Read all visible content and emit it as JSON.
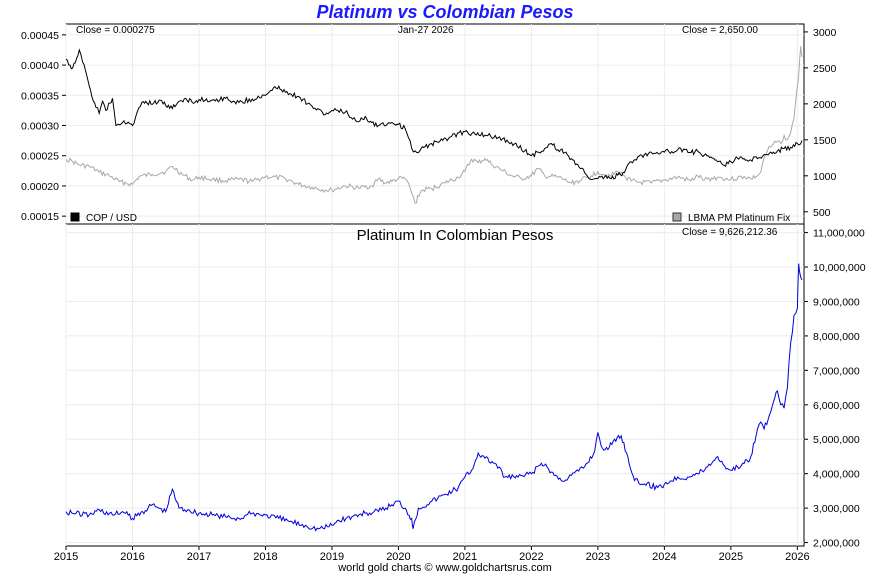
{
  "page": {
    "title": "Platinum vs Colombian Pesos",
    "credit": "world gold charts © www.goldchartsrus.com"
  },
  "top_panel": {
    "date_label": "Jan-27  2026",
    "left_close": "Close = 0.000275",
    "right_close": "Close = 2,650.00",
    "legend_left": "COP / USD",
    "legend_right": "LBMA PM Platinum Fix"
  },
  "bottom_panel": {
    "title": "Platinum In Colombian Pesos",
    "right_close": "Close = 9,626,212.36"
  },
  "colors": {
    "cop_usd": "#000000",
    "platinum_usd": "#a8a8a8",
    "platinum_cop": "#0000dd",
    "grid": "#ececec",
    "title": "#1a1aff"
  },
  "chart_data": [
    {
      "type": "line",
      "title": "Platinum vs Colombian Pesos",
      "x_ticks": [
        "2015",
        "2016",
        "2017",
        "2018",
        "2019",
        "2020",
        "2021",
        "2022",
        "2023",
        "2024",
        "2025",
        "2026"
      ],
      "xlim": [
        2015.0,
        2026.1
      ],
      "y_left_ticks": [
        "0.00015",
        "0.00020",
        "0.00025",
        "0.00030",
        "0.00035",
        "0.00040",
        "0.00045"
      ],
      "y_left_lim": [
        0.000137,
        0.000468
      ],
      "y_right_ticks": [
        "500",
        "1000",
        "1500",
        "2000",
        "2500",
        "3000"
      ],
      "y_right_lim": [
        330,
        3110
      ],
      "grid": true,
      "legend": [
        "bottom-left",
        "bottom-right"
      ],
      "series": [
        {
          "name": "COP / USD",
          "axis": "left",
          "x": [
            2015.0,
            2015.1,
            2015.2,
            2015.25,
            2015.35,
            2015.45,
            2015.5,
            2015.55,
            2015.6,
            2015.7,
            2015.75,
            2015.85,
            2016.0,
            2016.05,
            2016.1,
            2016.2,
            2016.3,
            2016.4,
            2016.5,
            2016.6,
            2016.7,
            2016.8,
            2016.9,
            2017.0,
            2017.2,
            2017.4,
            2017.6,
            2017.8,
            2018.0,
            2018.1,
            2018.2,
            2018.3,
            2018.5,
            2018.7,
            2018.9,
            2019.0,
            2019.2,
            2019.4,
            2019.5,
            2019.6,
            2019.7,
            2019.9,
            2020.0,
            2020.1,
            2020.15,
            2020.2,
            2020.25,
            2020.3,
            2020.4,
            2020.5,
            2020.6,
            2020.8,
            2021.0,
            2021.15,
            2021.3,
            2021.5,
            2021.7,
            2021.9,
            2022.0,
            2022.2,
            2022.3,
            2022.4,
            2022.5,
            2022.6,
            2022.7,
            2022.8,
            2022.85,
            2022.95,
            2023.0,
            2023.1,
            2023.2,
            2023.3,
            2023.4,
            2023.5,
            2023.6,
            2023.7,
            2023.8,
            2024.0,
            2024.2,
            2024.4,
            2024.5,
            2024.6,
            2024.7,
            2024.8,
            2024.9,
            2025.0,
            2025.1,
            2025.2,
            2025.3,
            2025.4,
            2025.5,
            2025.6,
            2025.7,
            2025.8,
            2025.9,
            2026.0,
            2026.07
          ],
          "values": [
            0.00041,
            0.000395,
            0.000425,
            0.000405,
            0.000365,
            0.00033,
            0.00032,
            0.00034,
            0.000325,
            0.000345,
            0.0003,
            0.000305,
            0.0003,
            0.000315,
            0.00033,
            0.00034,
            0.000335,
            0.000342,
            0.000333,
            0.000328,
            0.00034,
            0.000345,
            0.000338,
            0.000343,
            0.000342,
            0.000345,
            0.000338,
            0.000344,
            0.00035,
            0.000358,
            0.000365,
            0.000355,
            0.000348,
            0.000332,
            0.000318,
            0.000325,
            0.000322,
            0.000306,
            0.000315,
            0.000305,
            0.0003,
            0.000305,
            0.000302,
            0.000295,
            0.00028,
            0.000262,
            0.000258,
            0.000255,
            0.000265,
            0.00027,
            0.000272,
            0.000282,
            0.00029,
            0.000286,
            0.000284,
            0.00028,
            0.000272,
            0.000258,
            0.00025,
            0.000262,
            0.00027,
            0.00026,
            0.000255,
            0.000245,
            0.000235,
            0.000222,
            0.000215,
            0.000212,
            0.000212,
            0.000215,
            0.000212,
            0.000218,
            0.000222,
            0.00024,
            0.000248,
            0.000252,
            0.000256,
            0.000256,
            0.00026,
            0.000255,
            0.000258,
            0.000251,
            0.000248,
            0.00024,
            0.000234,
            0.00024,
            0.000246,
            0.000245,
            0.000243,
            0.000245,
            0.000252,
            0.000256,
            0.000258,
            0.000262,
            0.000264,
            0.00027,
            0.000275
          ]
        },
        {
          "name": "LBMA PM Platinum Fix",
          "axis": "right",
          "x": [
            2015.0,
            2015.1,
            2015.2,
            2015.35,
            2015.5,
            2015.65,
            2015.8,
            2016.0,
            2016.1,
            2016.3,
            2016.5,
            2016.6,
            2016.75,
            2016.9,
            2017.0,
            2017.2,
            2017.4,
            2017.6,
            2017.8,
            2018.0,
            2018.1,
            2018.3,
            2018.5,
            2018.7,
            2018.9,
            2019.0,
            2019.2,
            2019.4,
            2019.6,
            2019.7,
            2019.8,
            2019.9,
            2020.0,
            2020.1,
            2020.15,
            2020.2,
            2020.25,
            2020.35,
            2020.5,
            2020.7,
            2020.9,
            2021.0,
            2021.1,
            2021.2,
            2021.3,
            2021.4,
            2021.55,
            2021.7,
            2021.85,
            2022.0,
            2022.1,
            2022.2,
            2022.4,
            2022.6,
            2022.75,
            2022.9,
            2023.0,
            2023.1,
            2023.2,
            2023.3,
            2023.4,
            2023.5,
            2023.6,
            2023.8,
            2024.0,
            2024.2,
            2024.4,
            2024.5,
            2024.6,
            2024.8,
            2025.0,
            2025.2,
            2025.3,
            2025.4,
            2025.45,
            2025.5,
            2025.55,
            2025.6,
            2025.7,
            2025.75,
            2025.8,
            2025.85,
            2025.9,
            2025.95,
            2026.0,
            2026.02,
            2026.05,
            2026.07
          ],
          "values": [
            1230,
            1200,
            1150,
            1130,
            1050,
            1000,
            920,
            880,
            990,
            1020,
            1060,
            1130,
            1020,
            940,
            980,
            950,
            930,
            950,
            920,
            990,
            980,
            960,
            880,
            840,
            800,
            800,
            860,
            830,
            860,
            960,
            900,
            920,
            960,
            960,
            900,
            760,
            620,
            800,
            820,
            900,
            980,
            1060,
            1230,
            1180,
            1240,
            1160,
            1080,
            1000,
            960,
            1000,
            1100,
            1000,
            980,
            900,
            940,
            1000,
            1060,
            1010,
            1000,
            1060,
            1000,
            930,
            910,
            900,
            940,
            980,
            930,
            1000,
            940,
            980,
            950,
            990,
            960,
            1000,
            1050,
            1250,
            1350,
            1400,
            1480,
            1450,
            1560,
            1500,
            1600,
            1800,
            2250,
            2400,
            2800,
            2650
          ]
        },
        {
          "name": "",
          "axis": "none",
          "x": [],
          "values": []
        }
      ]
    },
    {
      "type": "line",
      "title": "Platinum In Colombian Pesos",
      "x_ticks": [
        "2015",
        "2016",
        "2017",
        "2018",
        "2019",
        "2020",
        "2021",
        "2022",
        "2023",
        "2024",
        "2025",
        "2026"
      ],
      "xlim": [
        2015.0,
        2026.1
      ],
      "y_ticks": [
        "2,000,000",
        "3,000,000",
        "4,000,000",
        "5,000,000",
        "6,000,000",
        "7,000,000",
        "8,000,000",
        "9,000,000",
        "10,000,000",
        "11,000,000"
      ],
      "ylim": [
        1900000,
        11250000
      ],
      "grid": true,
      "series": [
        {
          "name": "Platinum In Colombian Pesos",
          "axis": "left",
          "x": [
            2015.0,
            2015.15,
            2015.35,
            2015.5,
            2015.7,
            2015.85,
            2016.0,
            2016.15,
            2016.3,
            2016.5,
            2016.6,
            2016.7,
            2016.85,
            2017.0,
            2017.2,
            2017.4,
            2017.6,
            2017.8,
            2018.0,
            2018.2,
            2018.4,
            2018.6,
            2018.8,
            2019.0,
            2019.1,
            2019.3,
            2019.5,
            2019.7,
            2019.9,
            2020.0,
            2020.1,
            2020.2,
            2020.22,
            2020.3,
            2020.5,
            2020.7,
            2020.9,
            2021.0,
            2021.1,
            2021.2,
            2021.3,
            2021.45,
            2021.6,
            2021.8,
            2022.0,
            2022.15,
            2022.3,
            2022.45,
            2022.6,
            2022.8,
            2022.95,
            2023.0,
            2023.05,
            2023.15,
            2023.25,
            2023.35,
            2023.45,
            2023.55,
            2023.7,
            2023.9,
            2024.0,
            2024.2,
            2024.35,
            2024.5,
            2024.65,
            2024.8,
            2024.95,
            2025.0,
            2025.1,
            2025.2,
            2025.3,
            2025.4,
            2025.45,
            2025.5,
            2025.6,
            2025.7,
            2025.75,
            2025.8,
            2025.85,
            2025.9,
            2025.95,
            2026.0,
            2026.02,
            2026.04,
            2026.07
          ],
          "values": [
            2900000,
            2850000,
            2800000,
            2950000,
            2800000,
            2900000,
            2700000,
            2900000,
            3100000,
            2900000,
            3550000,
            3000000,
            2950000,
            2850000,
            2800000,
            2750000,
            2700000,
            2850000,
            2800000,
            2700000,
            2600000,
            2500000,
            2400000,
            2500000,
            2650000,
            2750000,
            2850000,
            2900000,
            3100000,
            3200000,
            3000000,
            2700000,
            2400000,
            3000000,
            3200000,
            3400000,
            3600000,
            3900000,
            4100000,
            4600000,
            4450000,
            4300000,
            3900000,
            3900000,
            4000000,
            4300000,
            4050000,
            3800000,
            3950000,
            4200000,
            4650000,
            5200000,
            4800000,
            4700000,
            5000000,
            5100000,
            4500000,
            3800000,
            3700000,
            3600000,
            3700000,
            3900000,
            3900000,
            4000000,
            4200000,
            4500000,
            4150000,
            4100000,
            4200000,
            4300000,
            4500000,
            5300000,
            5500000,
            5300000,
            5800000,
            6400000,
            6000000,
            5900000,
            6500000,
            7800000,
            8600000,
            8800000,
            10100000,
            9800000,
            9626212
          ]
        }
      ]
    }
  ]
}
